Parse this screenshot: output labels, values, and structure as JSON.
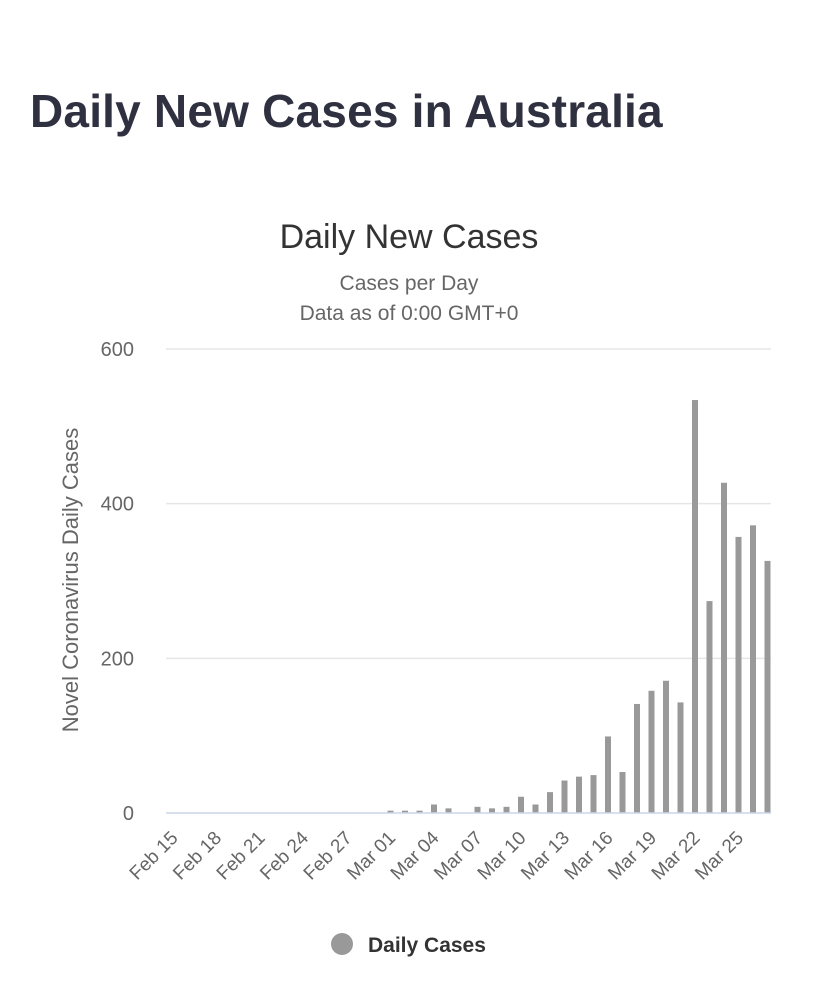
{
  "page": {
    "heading": "Daily New Cases in Australia"
  },
  "chart_data": {
    "type": "bar",
    "title": "Daily New Cases",
    "subtitle": "Cases per Day",
    "subtitle2": "Data as of 0:00 GMT+0",
    "ylabel": "Novel Coronavirus Daily Cases",
    "xlabel": "",
    "ylim": [
      0,
      600
    ],
    "yticks": [
      0,
      200,
      400,
      600
    ],
    "grid": true,
    "legend": "bottom",
    "bar_color": "#999999",
    "categories": [
      "Feb 15",
      "Feb 16",
      "Feb 17",
      "Feb 18",
      "Feb 19",
      "Feb 20",
      "Feb 21",
      "Feb 22",
      "Feb 23",
      "Feb 24",
      "Feb 25",
      "Feb 26",
      "Feb 27",
      "Feb 28",
      "Feb 29",
      "Mar 01",
      "Mar 02",
      "Mar 03",
      "Mar 04",
      "Mar 05",
      "Mar 06",
      "Mar 07",
      "Mar 08",
      "Mar 09",
      "Mar 10",
      "Mar 11",
      "Mar 12",
      "Mar 13",
      "Mar 14",
      "Mar 15",
      "Mar 16",
      "Mar 17",
      "Mar 18",
      "Mar 19",
      "Mar 20",
      "Mar 21",
      "Mar 22",
      "Mar 23",
      "Mar 24",
      "Mar 25",
      "Mar 26",
      "Mar 27"
    ],
    "tick_labels": [
      "Feb 15",
      "Feb 18",
      "Feb 21",
      "Feb 24",
      "Feb 27",
      "Mar 01",
      "Mar 04",
      "Mar 07",
      "Mar 10",
      "Mar 13",
      "Mar 16",
      "Mar 19",
      "Mar 22",
      "Mar 25"
    ],
    "series": [
      {
        "name": "Daily Cases",
        "values": [
          0,
          0,
          0,
          0,
          0,
          0,
          0,
          0,
          0,
          0,
          0,
          0,
          0,
          0,
          0,
          3,
          3,
          3,
          11,
          6,
          0,
          8,
          6,
          8,
          21,
          11,
          27,
          42,
          47,
          49,
          99,
          53,
          141,
          158,
          171,
          143,
          534,
          274,
          427,
          357,
          372,
          326
        ]
      }
    ]
  }
}
